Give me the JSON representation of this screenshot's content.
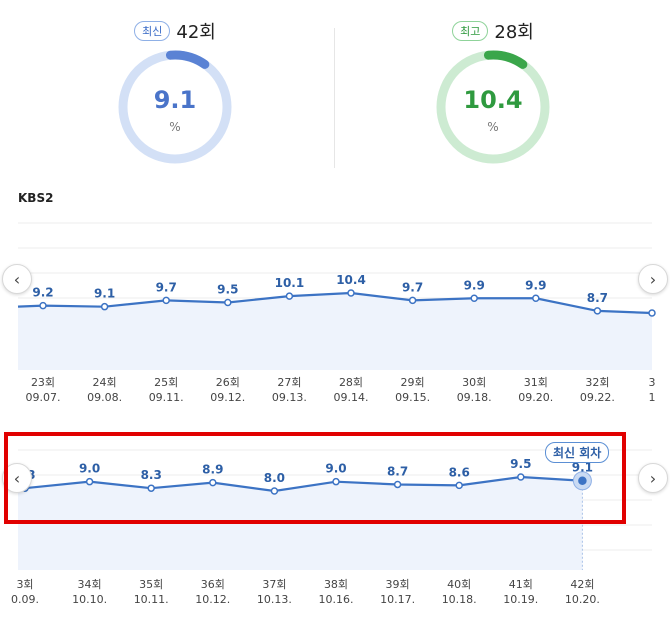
{
  "summary": {
    "latest": {
      "badge": "최신",
      "episode": "42회",
      "value": 9.1,
      "value_text": "9.1",
      "unit": "%",
      "color": "#5a82d4",
      "track": "#d3e0f6"
    },
    "best": {
      "badge": "최고",
      "episode": "28회",
      "value": 10.4,
      "value_text": "10.4",
      "unit": "%",
      "color": "#3aa64a",
      "track": "#cdebd2"
    }
  },
  "channel": "KBS2",
  "latest_tag": "최신 회차",
  "chart_data": [
    {
      "type": "area",
      "ylim": [
        0,
        14
      ],
      "points": [
        {
          "label": "9.2",
          "value": 9.2,
          "ep": "23회",
          "date": "09.07."
        },
        {
          "label": "9.1",
          "value": 9.1,
          "ep": "24회",
          "date": "09.08."
        },
        {
          "label": "9.7",
          "value": 9.7,
          "ep": "25회",
          "date": "09.11."
        },
        {
          "label": "9.5",
          "value": 9.5,
          "ep": "26회",
          "date": "09.12."
        },
        {
          "label": "10.1",
          "value": 10.1,
          "ep": "27회",
          "date": "09.13."
        },
        {
          "label": "10.4",
          "value": 10.4,
          "ep": "28회",
          "date": "09.14."
        },
        {
          "label": "9.7",
          "value": 9.7,
          "ep": "29회",
          "date": "09.15."
        },
        {
          "label": "9.9",
          "value": 9.9,
          "ep": "30회",
          "date": "09.18."
        },
        {
          "label": "9.9",
          "value": 9.9,
          "ep": "31회",
          "date": "09.20."
        },
        {
          "label": "8.7",
          "value": 8.7,
          "ep": "32회",
          "date": "09.22."
        },
        {
          "label": "",
          "value": 8.5,
          "ep": "3",
          "date": "1"
        }
      ]
    },
    {
      "type": "area",
      "ylim": [
        0,
        14
      ],
      "points": [
        {
          "label": "8.3",
          "value": 8.3,
          "ep": "3회",
          "date": "0.09."
        },
        {
          "label": "9.0",
          "value": 9.0,
          "ep": "34회",
          "date": "10.10."
        },
        {
          "label": "8.3",
          "value": 8.3,
          "ep": "35회",
          "date": "10.11."
        },
        {
          "label": "8.9",
          "value": 8.9,
          "ep": "36회",
          "date": "10.12."
        },
        {
          "label": "8.0",
          "value": 8.0,
          "ep": "37회",
          "date": "10.13."
        },
        {
          "label": "9.0",
          "value": 9.0,
          "ep": "38회",
          "date": "10.16."
        },
        {
          "label": "8.7",
          "value": 8.7,
          "ep": "39회",
          "date": "10.17."
        },
        {
          "label": "8.6",
          "value": 8.6,
          "ep": "40회",
          "date": "10.18."
        },
        {
          "label": "9.5",
          "value": 9.5,
          "ep": "41회",
          "date": "10.19."
        },
        {
          "label": "9.1",
          "value": 9.1,
          "ep": "42회",
          "date": "10.20."
        }
      ]
    }
  ],
  "nav": {
    "prev": "‹",
    "next": "›"
  }
}
